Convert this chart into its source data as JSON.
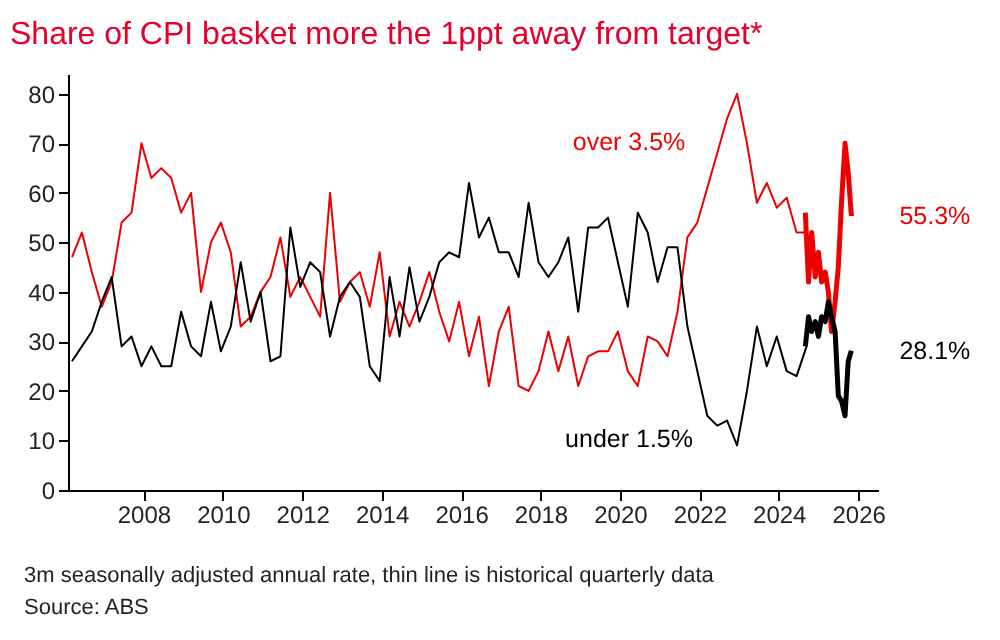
{
  "chart_data": {
    "type": "line",
    "title": "Share of CPI basket more the 1ppt away from target*",
    "xlim": [
      2006.1,
      2026.5
    ],
    "xticks": [
      2008,
      2010,
      2012,
      2014,
      2016,
      2018,
      2020,
      2022,
      2024,
      2026
    ],
    "ylim": [
      0,
      84
    ],
    "yticks": [
      0,
      10,
      20,
      30,
      40,
      50,
      60,
      70,
      80
    ],
    "x": [
      2006.2,
      2006.45,
      2006.7,
      2006.95,
      2007.2,
      2007.45,
      2007.7,
      2007.95,
      2008.2,
      2008.45,
      2008.7,
      2008.95,
      2009.2,
      2009.45,
      2009.7,
      2009.95,
      2010.2,
      2010.45,
      2010.7,
      2010.95,
      2011.2,
      2011.45,
      2011.7,
      2011.95,
      2012.2,
      2012.45,
      2012.7,
      2012.95,
      2013.2,
      2013.45,
      2013.7,
      2013.95,
      2014.2,
      2014.45,
      2014.7,
      2014.95,
      2015.2,
      2015.45,
      2015.7,
      2015.95,
      2016.2,
      2016.45,
      2016.7,
      2016.95,
      2017.2,
      2017.45,
      2017.7,
      2017.95,
      2018.2,
      2018.45,
      2018.7,
      2018.95,
      2019.2,
      2019.45,
      2019.7,
      2019.95,
      2020.2,
      2020.45,
      2020.7,
      2020.95,
      2021.2,
      2021.45,
      2021.7,
      2021.95,
      2022.2,
      2022.45,
      2022.7,
      2022.95,
      2023.2,
      2023.45,
      2023.7,
      2023.95,
      2024.2,
      2024.45,
      2024.7
    ],
    "series": [
      {
        "name": "over 3.5%",
        "color": "#ee0000",
        "values": [
          47,
          52,
          44,
          37,
          42,
          54,
          56,
          70,
          63,
          65,
          63,
          56,
          60,
          40,
          50,
          54,
          48,
          33,
          35,
          40,
          43,
          51,
          39,
          43,
          39,
          35,
          60,
          38,
          42,
          44,
          37,
          48,
          31,
          38,
          33,
          38,
          44,
          36,
          30,
          38,
          27,
          35,
          21,
          32,
          37,
          21,
          20,
          24,
          32,
          24,
          31,
          21,
          27,
          28,
          28,
          32,
          24,
          21,
          31,
          30,
          27,
          36,
          51,
          54,
          61,
          68,
          75,
          80,
          70,
          58,
          62,
          57,
          59,
          52,
          52
        ]
      },
      {
        "name": "under 1.5%",
        "color": "#000000",
        "values": [
          26,
          29,
          32,
          38,
          43,
          29,
          31,
          25,
          29,
          25,
          25,
          36,
          29,
          27,
          38,
          28,
          33,
          46,
          34,
          40,
          26,
          27,
          53,
          41,
          46,
          44,
          31,
          39,
          42,
          39,
          25,
          22,
          43,
          31,
          45,
          34,
          39,
          46,
          48,
          47,
          62,
          51,
          55,
          48,
          48,
          43,
          58,
          46,
          43,
          46,
          51,
          36,
          53,
          53,
          55,
          46,
          37,
          56,
          52,
          42,
          49,
          49,
          33,
          24,
          15,
          13,
          14,
          9,
          20,
          33,
          25,
          31,
          24,
          23,
          29
        ]
      },
      {
        "color": "#ee0000",
        "x": [
          2024.67,
          2024.75,
          2024.83,
          2024.92,
          2025,
          2025.08,
          2025.17,
          2025.25,
          2025.33,
          2025.42,
          2025.5,
          2025.58,
          2025.67,
          2025.75,
          2025.83
        ],
        "values": [
          56,
          42,
          52,
          43,
          48,
          42,
          44,
          40,
          32,
          38,
          45,
          58,
          70,
          64,
          55.3
        ]
      },
      {
        "color": "#000000",
        "x": [
          2024.67,
          2024.75,
          2024.83,
          2024.92,
          2025,
          2025.08,
          2025.17,
          2025.25,
          2025.33,
          2025.42,
          2025.5,
          2025.58,
          2025.67,
          2025.75,
          2025.83
        ],
        "values": [
          29,
          35,
          32,
          34,
          31,
          35,
          34,
          38,
          35,
          32,
          19,
          18,
          15,
          26,
          28.1
        ]
      }
    ],
    "annotations": [
      {
        "text": "55.3%",
        "x": 2025.83,
        "y": 55.3
      },
      {
        "text": "28.1%",
        "x": 2025.83,
        "y": 28.1
      },
      "3m seasonally adjusted annual rate, thin line is historical quarterly data",
      "Source: ABS"
    ]
  }
}
